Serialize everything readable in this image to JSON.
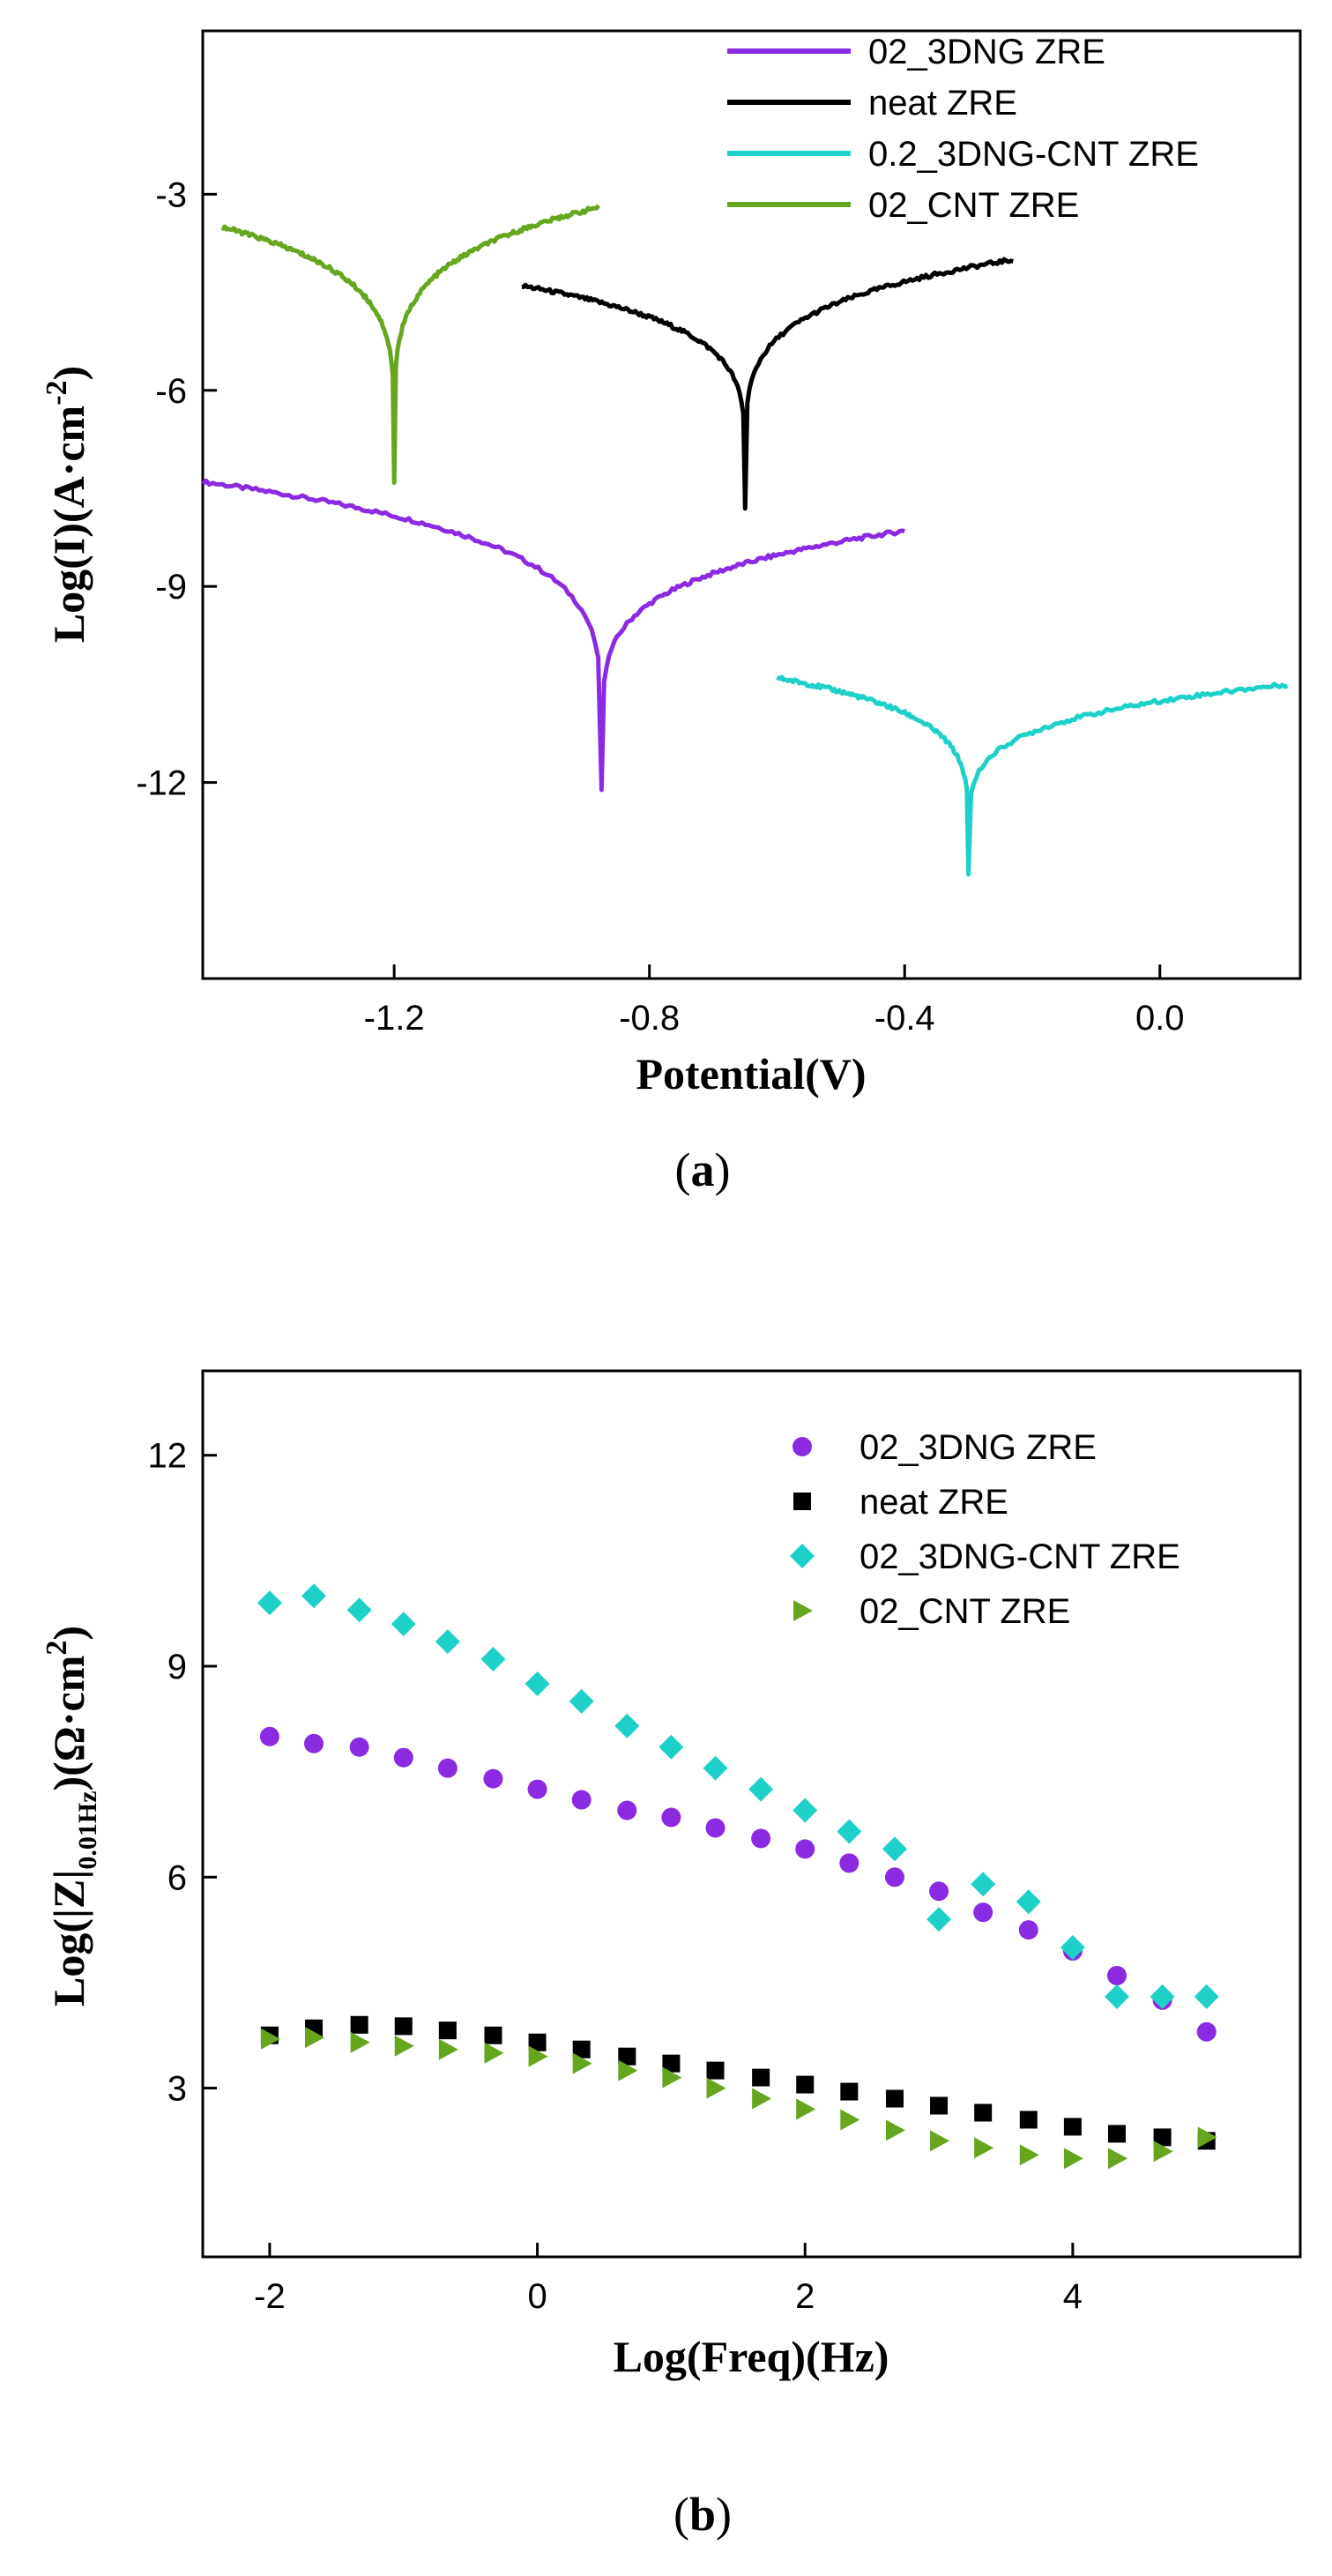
{
  "chart_data": [
    {
      "type": "line",
      "panel_label": "(a)",
      "caption_letter": "a",
      "xlabel": "Potential(V)",
      "ylabel": "Log(I)(A·cm",
      "ylabel_sup": "-2",
      "ylabel_close": ")",
      "xlim": [
        -1.5,
        0.22
      ],
      "ylim": [
        -15.0,
        -0.5
      ],
      "x_ticks": [
        -1.2,
        -0.8,
        -0.4,
        0.0
      ],
      "x_tick_labels": [
        "-1.2",
        "-0.8",
        "-0.4",
        "0.0"
      ],
      "y_ticks": [
        -3,
        -6,
        -9,
        -12
      ],
      "y_tick_labels": [
        "-3",
        "-6",
        "-9",
        "-12"
      ],
      "legend_position": "top-right",
      "series": [
        {
          "name": "02_3DNG ZRE",
          "color": "#8a2be2",
          "ecorr": -0.875,
          "left_x": -1.5,
          "left_y": -7.4,
          "right_x": -0.4,
          "right_y": -8.15,
          "min_y": -12.1
        },
        {
          "name": "neat ZRE",
          "color": "#000000",
          "ecorr": -0.65,
          "left_x": -1.0,
          "left_y": -4.4,
          "right_x": -0.23,
          "right_y": -4.0,
          "min_y": -7.8
        },
        {
          "name": "0.2_3DNG-CNT ZRE",
          "color": "#1ed1c8",
          "ecorr": -0.3,
          "left_x": -0.6,
          "left_y": -10.4,
          "right_x": 0.2,
          "right_y": -10.5,
          "min_y": -13.4
        },
        {
          "name": "02_CNT ZRE",
          "color": "#66a61e",
          "ecorr": -1.2,
          "left_x": -1.47,
          "left_y": -3.5,
          "right_x": -0.88,
          "right_y": -3.2,
          "min_y": -7.4
        }
      ]
    },
    {
      "type": "scatter",
      "panel_label": "(b)",
      "caption_letter": "b",
      "xlabel": "Log(Freq)(Hz)",
      "ylabel": "Log(|Z|",
      "ylabel_sub": "0.01Hz",
      "ylabel_mid": ")(Ω·cm",
      "ylabel_sup": "2",
      "ylabel_close": ")",
      "xlim": [
        -2.5,
        5.7
      ],
      "ylim": [
        0.6,
        13.2
      ],
      "x_ticks": [
        -2,
        0,
        2,
        4
      ],
      "x_tick_labels": [
        "-2",
        "0",
        "2",
        "4"
      ],
      "y_ticks": [
        3,
        6,
        9,
        12
      ],
      "y_tick_labels": [
        "3",
        "6",
        "9",
        "12"
      ],
      "legend_position": "top-right",
      "x": [
        -2.0,
        -1.67,
        -1.33,
        -1.0,
        -0.67,
        -0.33,
        0.0,
        0.33,
        0.67,
        1.0,
        1.33,
        1.67,
        2.0,
        2.33,
        2.67,
        3.0,
        3.33,
        3.67,
        4.0,
        4.33,
        4.67,
        5.0
      ],
      "series": [
        {
          "name": "02_3DNG ZRE",
          "color": "#8a2be2",
          "marker": "circle",
          "values": [
            8.0,
            7.9,
            7.85,
            7.7,
            7.55,
            7.4,
            7.25,
            7.1,
            6.95,
            6.85,
            6.7,
            6.55,
            6.4,
            6.2,
            6.0,
            5.8,
            5.5,
            5.25,
            4.95,
            4.6,
            4.25,
            3.8
          ]
        },
        {
          "name": "neat ZRE",
          "color": "#000000",
          "marker": "square",
          "values": [
            3.75,
            3.85,
            3.9,
            3.88,
            3.82,
            3.75,
            3.65,
            3.55,
            3.45,
            3.35,
            3.25,
            3.15,
            3.05,
            2.95,
            2.85,
            2.75,
            2.65,
            2.55,
            2.45,
            2.35,
            2.3,
            2.25
          ]
        },
        {
          "name": "02_3DNG-CNT ZRE",
          "color": "#1ed1c8",
          "marker": "diamond",
          "values": [
            9.9,
            10.0,
            9.8,
            9.6,
            9.35,
            9.1,
            8.75,
            8.5,
            8.15,
            7.85,
            7.55,
            7.25,
            6.95,
            6.65,
            6.4,
            5.4,
            5.9,
            5.65,
            5.0,
            4.3,
            4.3,
            4.3
          ]
        },
        {
          "name": "02_CNT ZRE",
          "color": "#66a61e",
          "marker": "triangle-right",
          "values": [
            3.7,
            3.72,
            3.65,
            3.6,
            3.55,
            3.5,
            3.45,
            3.35,
            3.25,
            3.15,
            3.0,
            2.85,
            2.7,
            2.55,
            2.4,
            2.25,
            2.15,
            2.05,
            2.0,
            2.0,
            2.1,
            2.3
          ]
        }
      ]
    }
  ]
}
